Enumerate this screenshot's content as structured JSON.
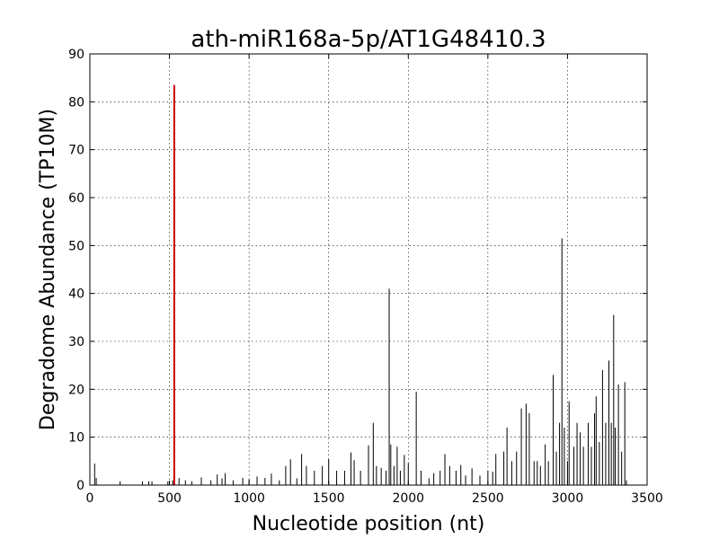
{
  "chart_data": {
    "type": "bar",
    "title": "ath-miR168a-5p/AT1G48410.3",
    "xlabel": "Nucleotide position (nt)",
    "ylabel": "Degradome Abundance (TP10M)",
    "xlim": [
      0,
      3500
    ],
    "ylim": [
      0,
      90
    ],
    "xticks": [
      0,
      500,
      1000,
      1500,
      2000,
      2500,
      3000,
      3500
    ],
    "yticks": [
      0,
      10,
      20,
      30,
      40,
      50,
      60,
      70,
      80,
      90
    ],
    "grid": true,
    "series": [
      {
        "color": "#000000",
        "points": [
          [
            30,
            4.5
          ],
          [
            40,
            1.5
          ],
          [
            190,
            0.8
          ],
          [
            330,
            0.8
          ],
          [
            370,
            0.8
          ],
          [
            390,
            0.8
          ],
          [
            490,
            0.8
          ],
          [
            520,
            1.0
          ],
          [
            560,
            1.5
          ],
          [
            600,
            1.0
          ],
          [
            640,
            0.8
          ],
          [
            700,
            1.6
          ],
          [
            760,
            1.0
          ],
          [
            800,
            2.2
          ],
          [
            830,
            1.4
          ],
          [
            850,
            2.5
          ],
          [
            900,
            1.0
          ],
          [
            960,
            1.5
          ],
          [
            1000,
            1.2
          ],
          [
            1050,
            1.8
          ],
          [
            1100,
            1.5
          ],
          [
            1140,
            2.4
          ],
          [
            1190,
            1.0
          ],
          [
            1230,
            4.0
          ],
          [
            1260,
            5.4
          ],
          [
            1300,
            1.4
          ],
          [
            1330,
            6.5
          ],
          [
            1360,
            4.0
          ],
          [
            1410,
            3.0
          ],
          [
            1460,
            4.0
          ],
          [
            1500,
            5.4
          ],
          [
            1550,
            3.0
          ],
          [
            1600,
            3.0
          ],
          [
            1640,
            6.8
          ],
          [
            1660,
            5.2
          ],
          [
            1700,
            3.0
          ],
          [
            1750,
            8.3
          ],
          [
            1780,
            13.0
          ],
          [
            1800,
            4.0
          ],
          [
            1830,
            3.6
          ],
          [
            1860,
            3.0
          ],
          [
            1880,
            41.0
          ],
          [
            1890,
            8.5
          ],
          [
            1910,
            4.0
          ],
          [
            1930,
            8.0
          ],
          [
            1950,
            3.0
          ],
          [
            1975,
            6.3
          ],
          [
            2000,
            4.6
          ],
          [
            2050,
            19.5
          ],
          [
            2080,
            3.0
          ],
          [
            2130,
            1.4
          ],
          [
            2160,
            2.5
          ],
          [
            2200,
            3.0
          ],
          [
            2230,
            6.5
          ],
          [
            2260,
            4.0
          ],
          [
            2300,
            3.0
          ],
          [
            2330,
            4.2
          ],
          [
            2360,
            2.0
          ],
          [
            2400,
            3.5
          ],
          [
            2450,
            2.0
          ],
          [
            2500,
            3.0
          ],
          [
            2530,
            2.8
          ],
          [
            2550,
            6.5
          ],
          [
            2600,
            7.0
          ],
          [
            2620,
            12.0
          ],
          [
            2650,
            5.0
          ],
          [
            2680,
            7.0
          ],
          [
            2710,
            16.0
          ],
          [
            2740,
            17.0
          ],
          [
            2760,
            15.0
          ],
          [
            2790,
            5.0
          ],
          [
            2810,
            5.0
          ],
          [
            2830,
            4.0
          ],
          [
            2860,
            8.5
          ],
          [
            2880,
            5.0
          ],
          [
            2910,
            23.0
          ],
          [
            2930,
            7.0
          ],
          [
            2950,
            13.0
          ],
          [
            2965,
            51.5
          ],
          [
            2980,
            12.0
          ],
          [
            3000,
            5.0
          ],
          [
            3010,
            17.5
          ],
          [
            3040,
            8.0
          ],
          [
            3060,
            13.0
          ],
          [
            3080,
            11.0
          ],
          [
            3100,
            8.0
          ],
          [
            3130,
            13.0
          ],
          [
            3150,
            8.0
          ],
          [
            3170,
            15.0
          ],
          [
            3180,
            18.5
          ],
          [
            3200,
            9.0
          ],
          [
            3220,
            24.0
          ],
          [
            3240,
            13.0
          ],
          [
            3260,
            26.0
          ],
          [
            3275,
            13.0
          ],
          [
            3290,
            35.5
          ],
          [
            3300,
            12.0
          ],
          [
            3320,
            21.0
          ],
          [
            3340,
            7.0
          ],
          [
            3360,
            21.5
          ],
          [
            3370,
            1.0
          ]
        ]
      },
      {
        "color": "#cc0000",
        "points": [
          [
            530,
            83.5
          ]
        ]
      }
    ]
  }
}
